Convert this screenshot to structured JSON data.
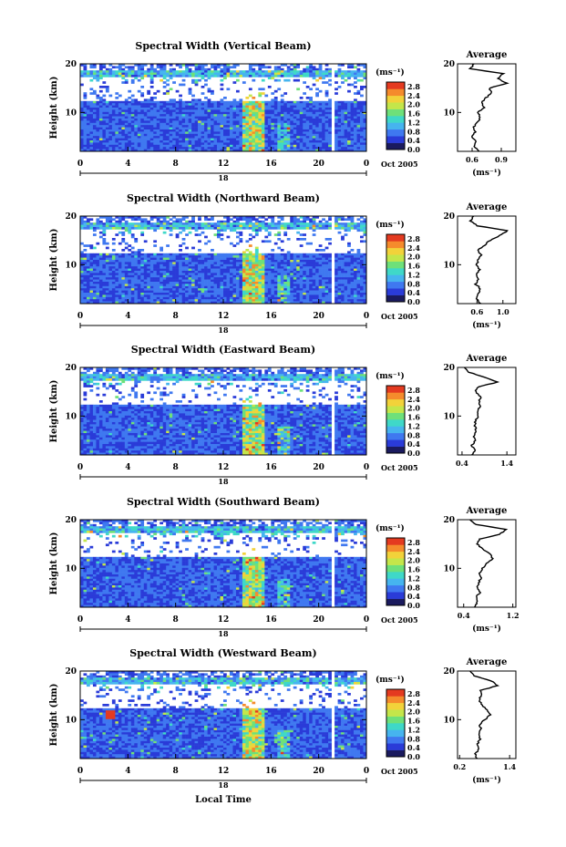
{
  "figure": {
    "xlabel": "Local Time",
    "colormap": [
      "#1a1a5e",
      "#2a3bd8",
      "#3f78f0",
      "#46b4ef",
      "#3fd8c8",
      "#6ee07a",
      "#c4e64a",
      "#f2d23a",
      "#f58b2c",
      "#e43a20"
    ],
    "background_gap_color": "#ffffff"
  },
  "chart_data": [
    {
      "type": "heatmap",
      "title": "Spectral Width (Vertical Beam)",
      "ylabel": "Height (km)",
      "yticks": [
        "20",
        "10"
      ],
      "xticks": [
        "0",
        "4",
        "8",
        "12",
        "16",
        "20",
        "0"
      ],
      "date_marker": "18",
      "date_label": "Oct 2005",
      "xlim": [
        0,
        24
      ],
      "ylim": [
        2,
        20
      ],
      "colorbar": {
        "unit": "(ms⁻¹)",
        "ticks": [
          "2.8",
          "2.4",
          "2.0",
          "1.6",
          "1.2",
          "0.8",
          "0.4",
          "0.0"
        ],
        "range": [
          0,
          3.0
        ]
      },
      "average_profile": {
        "title": "Average",
        "xlabel": "(ms⁻¹)",
        "xticks": [
          "0.6",
          "0.9"
        ],
        "xlim": [
          0.45,
          1.05
        ],
        "heights": [
          2,
          3,
          4,
          5,
          6,
          7,
          8,
          9,
          10,
          11,
          12,
          13,
          14,
          15,
          16,
          17,
          18,
          19,
          20
        ],
        "values": [
          0.68,
          0.62,
          0.64,
          0.6,
          0.63,
          0.62,
          0.66,
          0.68,
          0.66,
          0.72,
          0.7,
          0.74,
          0.8,
          0.78,
          0.96,
          0.86,
          0.92,
          0.58,
          0.62
        ]
      }
    },
    {
      "type": "heatmap",
      "title": "Spectral Width (Northward Beam)",
      "ylabel": "Height (km)",
      "yticks": [
        "20",
        "10"
      ],
      "xticks": [
        "0",
        "4",
        "8",
        "12",
        "16",
        "20",
        "0"
      ],
      "date_marker": "18",
      "date_label": "Oct 2005",
      "xlim": [
        0,
        24
      ],
      "ylim": [
        2,
        20
      ],
      "colorbar": {
        "unit": "(ms⁻¹)",
        "ticks": [
          "2.8",
          "2.4",
          "2.0",
          "1.6",
          "1.2",
          "0.8",
          "0.4",
          "0.0"
        ],
        "range": [
          0,
          3.0
        ]
      },
      "average_profile": {
        "title": "Average",
        "xlabel": "(ms⁻¹)",
        "xticks": [
          "0.6",
          "1.0"
        ],
        "xlim": [
          0.3,
          1.2
        ],
        "heights": [
          2,
          3,
          4,
          5,
          6,
          7,
          8,
          9,
          10,
          11,
          12,
          13,
          14,
          15,
          16,
          17,
          18,
          19,
          20
        ],
        "values": [
          0.65,
          0.6,
          0.62,
          0.66,
          0.58,
          0.62,
          0.6,
          0.64,
          0.6,
          0.62,
          0.66,
          0.62,
          0.72,
          0.8,
          0.95,
          1.08,
          0.6,
          0.5,
          0.55
        ]
      }
    },
    {
      "type": "heatmap",
      "title": "Spectral Width (Eastward Beam)",
      "ylabel": "Height (km)",
      "yticks": [
        "20",
        "10"
      ],
      "xticks": [
        "0",
        "4",
        "8",
        "12",
        "16",
        "20",
        "0"
      ],
      "date_marker": "18",
      "date_label": "Oct 2005",
      "xlim": [
        0,
        24
      ],
      "ylim": [
        2,
        20
      ],
      "colorbar": {
        "unit": "(ms⁻¹)",
        "ticks": [
          "2.8",
          "2.4",
          "2.0",
          "1.6",
          "1.2",
          "0.8",
          "0.4",
          "0.0"
        ],
        "range": [
          0,
          3.0
        ]
      },
      "average_profile": {
        "title": "Average",
        "xlabel": "",
        "xticks": [
          "0.4",
          "1.4"
        ],
        "xlim": [
          0.3,
          1.6
        ],
        "heights": [
          2,
          3,
          4,
          5,
          6,
          7,
          8,
          9,
          10,
          11,
          12,
          13,
          14,
          15,
          16,
          17,
          18,
          19,
          20
        ],
        "values": [
          0.62,
          0.68,
          0.62,
          0.7,
          0.66,
          0.72,
          0.68,
          0.7,
          0.76,
          0.74,
          0.8,
          0.78,
          0.82,
          0.7,
          0.76,
          1.2,
          0.9,
          0.55,
          0.45
        ]
      }
    },
    {
      "type": "heatmap",
      "title": "Spectral Width (Southward Beam)",
      "ylabel": "Height (km)",
      "yticks": [
        "20",
        "10"
      ],
      "xticks": [
        "0",
        "4",
        "8",
        "12",
        "16",
        "20",
        "0"
      ],
      "date_marker": "18",
      "date_label": "Oct 2005",
      "xlim": [
        0,
        24
      ],
      "ylim": [
        2,
        20
      ],
      "colorbar": {
        "unit": "(ms⁻¹)",
        "ticks": [
          "2.8",
          "2.4",
          "2.0",
          "1.6",
          "1.2",
          "0.8",
          "0.4",
          "0.0"
        ],
        "range": [
          0,
          3.0
        ]
      },
      "average_profile": {
        "title": "Average",
        "xlabel": "(ms⁻¹)",
        "xticks": [
          "0.4",
          "1.2"
        ],
        "xlim": [
          0.3,
          1.25
        ],
        "heights": [
          2,
          3,
          4,
          5,
          6,
          7,
          8,
          9,
          10,
          11,
          12,
          13,
          14,
          15,
          16,
          17,
          18,
          19,
          20
        ],
        "values": [
          0.58,
          0.62,
          0.6,
          0.66,
          0.62,
          0.64,
          0.68,
          0.66,
          0.7,
          0.78,
          0.88,
          0.82,
          0.7,
          0.62,
          0.66,
          0.98,
          1.1,
          0.6,
          0.5
        ]
      }
    },
    {
      "type": "heatmap",
      "title": "Spectral Width (Westward Beam)",
      "ylabel": "Height (km)",
      "yticks": [
        "20",
        "10"
      ],
      "xticks": [
        "0",
        "4",
        "8",
        "12",
        "16",
        "20",
        "0"
      ],
      "date_marker": "18",
      "date_label": "Oct 2005",
      "xlim": [
        0,
        24
      ],
      "ylim": [
        2,
        20
      ],
      "colorbar": {
        "unit": "(ms⁻¹)",
        "ticks": [
          "2.8",
          "2.4",
          "2.0",
          "1.6",
          "1.2",
          "0.8",
          "0.4",
          "0.0"
        ],
        "range": [
          0,
          3.0
        ]
      },
      "average_profile": {
        "title": "Average",
        "xlabel": "(ms⁻¹)",
        "xticks": [
          "0.2",
          "1.4"
        ],
        "xlim": [
          0.15,
          1.55
        ],
        "heights": [
          2,
          3,
          4,
          5,
          6,
          7,
          8,
          9,
          10,
          11,
          12,
          13,
          14,
          15,
          16,
          17,
          18,
          19,
          20
        ],
        "values": [
          0.62,
          0.58,
          0.66,
          0.62,
          0.7,
          0.66,
          0.72,
          0.68,
          0.8,
          0.94,
          0.86,
          0.74,
          0.66,
          0.72,
          0.7,
          1.1,
          0.96,
          0.55,
          0.45
        ]
      }
    }
  ]
}
